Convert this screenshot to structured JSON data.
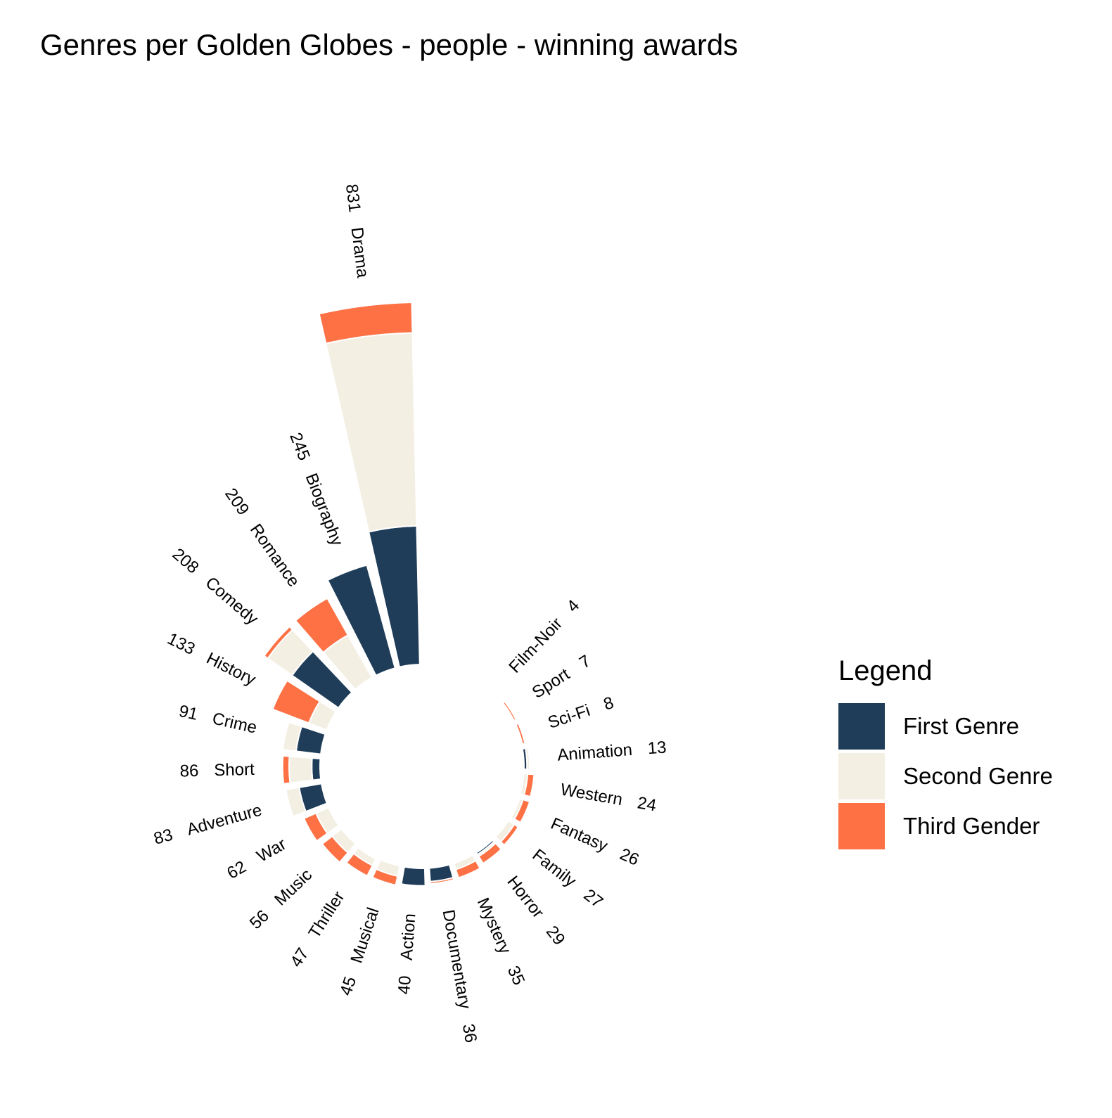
{
  "chart_data": {
    "type": "bar",
    "subtype": "circular-stacked-bar",
    "title": "Genres per Golden Globes - people - winning awards",
    "legend": {
      "title": "Legend",
      "position": "right"
    },
    "series": [
      {
        "name": "First Genre",
        "color": "#1f3d59"
      },
      {
        "name": "Second Genre",
        "color": "#f4efe3"
      },
      {
        "name": "Third Gender",
        "color": "#fd7145"
      }
    ],
    "categories": [
      {
        "name": "Drama",
        "total": 831,
        "first": 318,
        "second": 443,
        "third": 70
      },
      {
        "name": "Biography",
        "total": 245,
        "first": 245,
        "second": 0,
        "third": 0
      },
      {
        "name": "Romance",
        "total": 209,
        "first": 0,
        "second": 112,
        "third": 97
      },
      {
        "name": "Comedy",
        "total": 208,
        "first": 130,
        "second": 68,
        "third": 10
      },
      {
        "name": "History",
        "total": 133,
        "first": 0,
        "second": 44,
        "third": 89
      },
      {
        "name": "Crime",
        "total": 91,
        "first": 57,
        "second": 31,
        "third": 3
      },
      {
        "name": "Short",
        "total": 86,
        "first": 19,
        "second": 52,
        "third": 15
      },
      {
        "name": "Adventure",
        "total": 83,
        "first": 52,
        "second": 31,
        "third": 0
      },
      {
        "name": "War",
        "total": 62,
        "first": 0,
        "second": 32,
        "third": 30
      },
      {
        "name": "Music",
        "total": 56,
        "first": 0,
        "second": 27,
        "third": 29
      },
      {
        "name": "Thriller",
        "total": 47,
        "first": 3,
        "second": 17,
        "third": 27
      },
      {
        "name": "Musical",
        "total": 45,
        "first": 0,
        "second": 24,
        "third": 21
      },
      {
        "name": "Action",
        "total": 40,
        "first": 40,
        "second": 0,
        "third": 0
      },
      {
        "name": "Documentary",
        "total": 36,
        "first": 31,
        "second": 0,
        "third": 5
      },
      {
        "name": "Mystery",
        "total": 35,
        "first": 0,
        "second": 15,
        "third": 20
      },
      {
        "name": "Horror",
        "total": 29,
        "first": 5,
        "second": 5,
        "third": 19
      },
      {
        "name": "Family",
        "total": 27,
        "first": 0,
        "second": 16,
        "third": 11
      },
      {
        "name": "Fantasy",
        "total": 26,
        "first": 2,
        "second": 8,
        "third": 16
      },
      {
        "name": "Western",
        "total": 24,
        "first": 0,
        "second": 9,
        "third": 15
      },
      {
        "name": "Animation",
        "total": 13,
        "first": 7,
        "second": 6,
        "third": 0
      },
      {
        "name": "Sci-Fi",
        "total": 8,
        "first": 0,
        "second": 2,
        "third": 6
      },
      {
        "name": "Sport",
        "total": 7,
        "first": 0,
        "second": 2,
        "third": 5
      },
      {
        "name": "Film-Noir",
        "total": 4,
        "first": 0,
        "second": 2,
        "third": 2
      }
    ]
  }
}
